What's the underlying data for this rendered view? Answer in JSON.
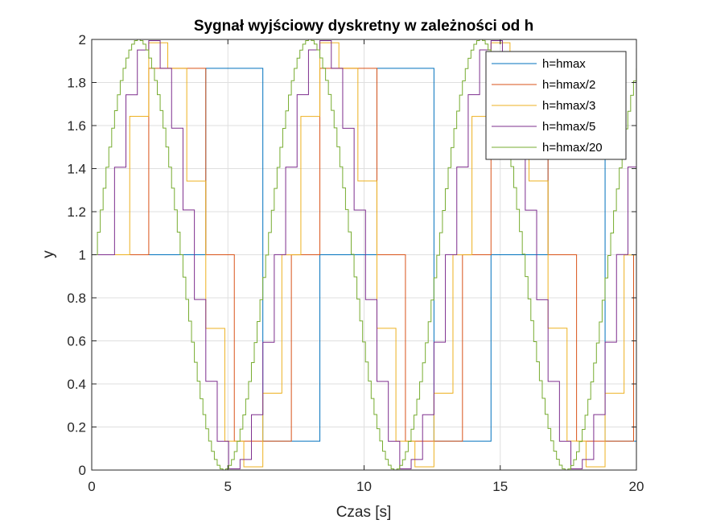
{
  "chart_data": {
    "type": "line",
    "title": "Sygnał wyjściowy dyskretny w zależności od h",
    "xlabel": "Czas [s]",
    "ylabel": "y",
    "xlim": [
      0,
      20
    ],
    "ylim": [
      0,
      2
    ],
    "x_ticks": [
      0,
      5,
      10,
      15,
      20
    ],
    "y_ticks": [
      0,
      0.2,
      0.4,
      0.6,
      0.8,
      1,
      1.2,
      1.4,
      1.6,
      1.8,
      2
    ],
    "grid": true,
    "legend_position": "top-right",
    "signal_model": {
      "offset": 1,
      "amplitude": 1,
      "period": 6.2832,
      "base_step": 2.0944
    },
    "series": [
      {
        "name": "h=hmax",
        "color": "#0072BD",
        "step": 2.0944
      },
      {
        "name": "h=hmax/2",
        "color": "#D95319",
        "step": 1.0472
      },
      {
        "name": "h=hmax/3",
        "color": "#EDB120",
        "step": 0.6981
      },
      {
        "name": "h=hmax/5",
        "color": "#7E2F8E",
        "step": 0.4189
      },
      {
        "name": "h=hmax/20",
        "color": "#77AC30",
        "step": 0.1047
      }
    ]
  }
}
